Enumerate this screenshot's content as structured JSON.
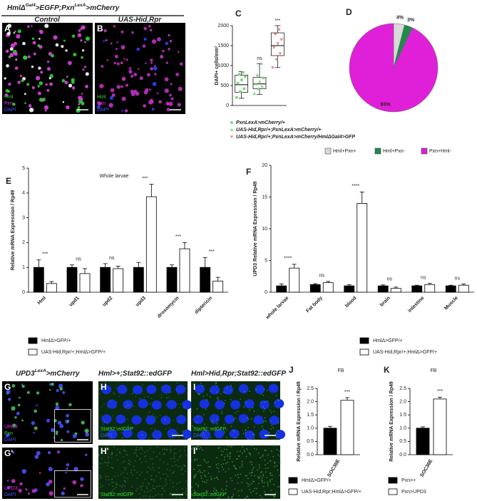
{
  "figure_header": {
    "parts": [
      "HmlΔ",
      "Gal4",
      ">EGFP;Pxn",
      "LexA",
      ">mCherry"
    ],
    "left": "Control",
    "right": "UAS-Hid,Rpr"
  },
  "row3_headers": [
    {
      "parts": [
        "UPD3",
        "LexA",
        ">mCherry"
      ]
    },
    {
      "parts": [
        "Hml>+;Stat92::edGFP"
      ]
    },
    {
      "parts": [
        "Hml>Hid,Rpr;Stat92::edGFP"
      ]
    }
  ],
  "images": [
    {
      "letter": "A",
      "channels": [
        {
          "text": "Hml",
          "color": "#33dd33"
        },
        {
          "text": "Pxn",
          "color": "#ee33ee"
        },
        {
          "text": "DAPI",
          "color": "#4455ff"
        }
      ]
    },
    {
      "letter": "B",
      "channels": [
        {
          "text": "Hml",
          "color": "#33dd33"
        },
        {
          "text": "Pxn",
          "color": "#ee33ee"
        },
        {
          "text": "DAPI",
          "color": "#4455ff"
        }
      ]
    },
    {
      "letter": "G",
      "channels": [
        {
          "text": "UPD3",
          "color": "#ee33ee"
        },
        {
          "text": "Pxn",
          "color": "#33dd33"
        },
        {
          "text": "DAPI",
          "color": "#4455ff"
        }
      ]
    },
    {
      "letter": "G'",
      "channels": [
        {
          "text": "UPD3",
          "color": "#ee33ee"
        },
        {
          "text": "DAPI",
          "color": "#4455ff"
        }
      ]
    },
    {
      "letter": "H",
      "channels": [
        {
          "text": "Stat92::edGFP",
          "color": "#33dd33"
        },
        {
          "text": "DAPI",
          "color": "#4455ff"
        }
      ]
    },
    {
      "letter": "I",
      "channels": [
        {
          "text": "Stat92::edGFP",
          "color": "#33dd33"
        },
        {
          "text": "DAPI",
          "color": "#4455ff"
        }
      ]
    },
    {
      "letter": "H'",
      "channels": [
        {
          "text": "Stat92::edGFP",
          "color": "#33dd33"
        }
      ]
    },
    {
      "letter": "I'",
      "channels": [
        {
          "text": "Stat92::edGFP",
          "color": "#33dd33"
        }
      ]
    }
  ],
  "chart_data": [
    {
      "type": "box",
      "label": "C",
      "ylabel": "DAPI+ cells/mm²",
      "ylim": [
        0,
        2000
      ],
      "yticks": [
        0,
        500,
        1000,
        1500,
        2000
      ],
      "series": [
        {
          "name": "PxnLexA>mCherry/+",
          "color": "#7ed67e",
          "marker": "circle",
          "min": 180,
          "q1": 330,
          "median": 520,
          "q3": 760,
          "max": 850,
          "points": [
            200,
            350,
            420,
            560,
            640,
            720,
            780,
            830
          ]
        },
        {
          "name": "UAS-Hid,Rpr/+;PxnLexA>mCherry/+",
          "color": "#7ed67e",
          "marker": "triangle",
          "min": 280,
          "q1": 420,
          "median": 540,
          "q3": 700,
          "max": 1050,
          "points": [
            300,
            420,
            480,
            540,
            600,
            690,
            760,
            1050
          ]
        },
        {
          "name": "UAS-Hid,Rpr/+;PxnLexA>mCherry/HmlΔGal4>GFP",
          "color": "#e88a8a",
          "marker": "triangle-down",
          "min": 950,
          "q1": 1250,
          "median": 1500,
          "q3": 1820,
          "max": 2000,
          "points": [
            950,
            1150,
            1300,
            1450,
            1550,
            1650,
            1780,
            1900
          ]
        }
      ],
      "annotations": [
        {
          "series": 1,
          "text": "ns"
        },
        {
          "series": 2,
          "text": "***"
        }
      ]
    },
    {
      "type": "pie",
      "label": "D",
      "categories": [
        "Hml+Pxn+",
        "Hml+Pxn-",
        "Pxn+Hml-"
      ],
      "values": [
        4,
        3,
        93
      ],
      "value_labels": [
        "4%",
        "3%",
        "93%"
      ],
      "colors": [
        "#d9d9d9",
        "#1e8a4c",
        "#e020d8"
      ]
    },
    {
      "type": "bar",
      "label": "E",
      "title": "Whole larvae",
      "ylabel": "Relative mRNA Expression / Rp49",
      "ylim": [
        0,
        5
      ],
      "yticks": [
        0,
        1,
        2,
        3,
        4,
        5
      ],
      "categories": [
        "Hml",
        "upd1",
        "upd2",
        "upd3",
        "drosomycin",
        "diptericin"
      ],
      "series": [
        {
          "name": "HmlΔ>GFP/+",
          "color": "#000000",
          "values": [
            1,
            1,
            1,
            1,
            1,
            1
          ],
          "errors": [
            0.3,
            0.1,
            0.15,
            0.2,
            0.1,
            0.4
          ]
        },
        {
          "name": "UAS-Hid,Rpr/+;HmlΔ>GFP/+",
          "color": "#ffffff",
          "values": [
            0.35,
            0.75,
            0.95,
            3.85,
            1.75,
            0.45
          ],
          "errors": [
            0.08,
            0.2,
            0.1,
            0.5,
            0.25,
            0.15
          ]
        }
      ],
      "annotations": [
        "***",
        "ns",
        "ns",
        "***",
        "***",
        "***"
      ]
    },
    {
      "type": "bar",
      "label": "F",
      "ylabel": "UPD3 Relative mRNA Expression / Rp49",
      "ylim": [
        0,
        20
      ],
      "yticks": [
        0,
        5,
        10,
        15,
        20
      ],
      "categories": [
        "whole larvae",
        "Fat body",
        "blood",
        "brain",
        "intestine",
        "Muscle"
      ],
      "series": [
        {
          "name": "HmlΔ>GFP/+",
          "color": "#000000",
          "values": [
            1,
            1.2,
            1,
            1,
            1,
            1
          ],
          "errors": [
            0.3,
            0.15,
            0.2,
            0.15,
            0.1,
            0.1
          ]
        },
        {
          "name": "UAS-Hid,Rpr/+;HmlΔ>GFP/+",
          "color": "#ffffff",
          "values": [
            3.8,
            1.5,
            14,
            0.6,
            1.2,
            1.1
          ],
          "errors": [
            0.6,
            0.2,
            1.8,
            0.2,
            0.2,
            0.2
          ]
        }
      ],
      "annotations": [
        "****",
        "ns",
        "****",
        "ns",
        "ns",
        "ns"
      ]
    },
    {
      "type": "bar",
      "label": "J",
      "title": "FB",
      "ylabel": "Relative mRNA Expression / Rp49",
      "ylim": [
        0,
        2.5
      ],
      "yticks": [
        {
          "value": 0,
          "label": "0.0"
        },
        0.5,
        {
          "value": 1,
          "label": "1.0"
        },
        1.5,
        {
          "value": 2,
          "label": "2.0"
        },
        2.5
      ],
      "categories": [
        "SOC36E"
      ],
      "series": [
        {
          "name": "HmlΔ>GFP/+",
          "color": "#000000",
          "values": [
            1.0
          ],
          "errors": [
            0.07
          ]
        },
        {
          "name": "UAS-Hid,Rpr;HmlΔ>GFP/+",
          "color": "#ffffff",
          "values": [
            2.05
          ],
          "errors": [
            0.1
          ]
        }
      ],
      "annotations": [
        "***"
      ]
    },
    {
      "type": "bar",
      "label": "K",
      "title": "FB",
      "ylabel": "Relative mRNA Expression / Rp49",
      "ylim": [
        0,
        2.5
      ],
      "yticks": [
        {
          "value": 0,
          "label": "0.0"
        },
        0.5,
        {
          "value": 1,
          "label": "1.0"
        },
        1.5,
        {
          "value": 2,
          "label": "2.0"
        },
        2.5
      ],
      "categories": [
        "SOC36E"
      ],
      "series": [
        {
          "name": "Pxn>+",
          "color": "#000000",
          "values": [
            1.0
          ],
          "errors": [
            0.05
          ]
        },
        {
          "name": "Pxn>UPD3",
          "color": "#ffffff",
          "values": [
            2.1
          ],
          "errors": [
            0.07
          ]
        }
      ],
      "annotations": [
        "***"
      ]
    }
  ]
}
